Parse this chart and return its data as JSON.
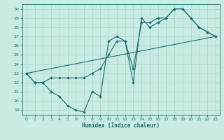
{
  "xlabel": "Humidex (Indice chaleur)",
  "xlim": [
    -0.5,
    23.5
  ],
  "ylim": [
    18.5,
    30.5
  ],
  "xticks": [
    0,
    1,
    2,
    3,
    4,
    5,
    6,
    7,
    8,
    9,
    10,
    11,
    12,
    13,
    14,
    15,
    16,
    17,
    18,
    19,
    20,
    21,
    22,
    23
  ],
  "yticks": [
    19,
    20,
    21,
    22,
    23,
    24,
    25,
    26,
    27,
    28,
    29,
    30
  ],
  "bg_color": "#c8ebe4",
  "grid_color": "#a8d5cc",
  "line_color": "#1a6e6e",
  "line1_x": [
    0,
    1,
    2,
    3,
    4,
    5,
    6,
    7,
    8,
    9,
    10,
    11,
    12,
    13,
    14,
    15,
    16,
    17,
    18,
    19,
    20,
    21,
    22,
    23
  ],
  "line1_y": [
    23,
    22,
    22,
    21,
    20.5,
    19.5,
    19,
    18.8,
    21,
    20.5,
    26.5,
    27,
    26.5,
    22,
    29,
    28,
    28.5,
    29,
    30,
    30,
    29,
    28,
    27.5,
    27
  ],
  "line2_x": [
    0,
    1,
    2,
    3,
    4,
    5,
    6,
    7,
    8,
    9,
    10,
    11,
    12,
    13,
    14,
    15,
    16,
    17,
    18,
    19,
    20,
    21,
    22,
    23
  ],
  "line2_y": [
    23,
    22,
    22,
    22.5,
    22.5,
    22.5,
    22.5,
    22.5,
    23,
    23.5,
    25,
    26.5,
    26.5,
    23.5,
    28.5,
    28.5,
    29,
    29,
    30,
    30,
    29,
    28,
    27.5,
    27
  ],
  "line3_x": [
    0,
    23
  ],
  "line3_y": [
    23,
    27
  ]
}
